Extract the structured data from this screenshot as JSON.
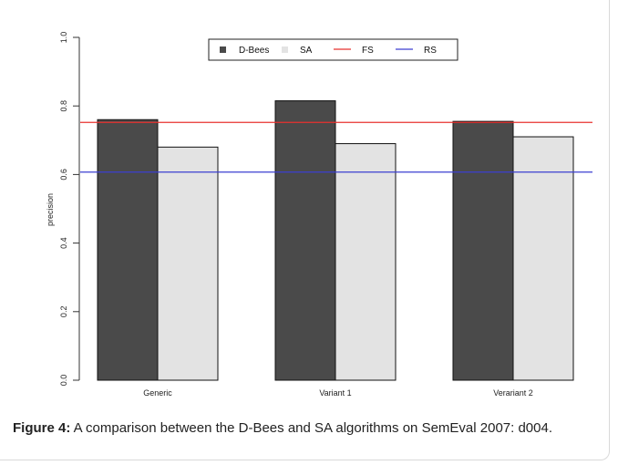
{
  "chart_data": {
    "type": "bar",
    "categories": [
      "Generic",
      "Variant 1",
      "Verariant 2"
    ],
    "series": [
      {
        "name": "D-Bees",
        "values": [
          0.76,
          0.815,
          0.755
        ],
        "color": "#4a4a4a"
      },
      {
        "name": "SA",
        "values": [
          0.68,
          0.69,
          0.71
        ],
        "color": "#e3e3e3"
      }
    ],
    "reference_lines": [
      {
        "name": "FS",
        "value": 0.752,
        "color": "#e8322f"
      },
      {
        "name": "RS",
        "value": 0.607,
        "color": "#3c3fd1"
      }
    ],
    "ylabel": "precision",
    "xlabel": "",
    "ylim": [
      0,
      1.0
    ],
    "yticks": [
      "0.0",
      "0.2",
      "0.4",
      "0.6",
      "0.8",
      "1.0"
    ],
    "legend_position": "top-center",
    "grid": false
  },
  "caption": {
    "label": "Figure 4:",
    "text": " A comparison between the D-Bees and SA algorithms on SemEval 2007: d004."
  }
}
